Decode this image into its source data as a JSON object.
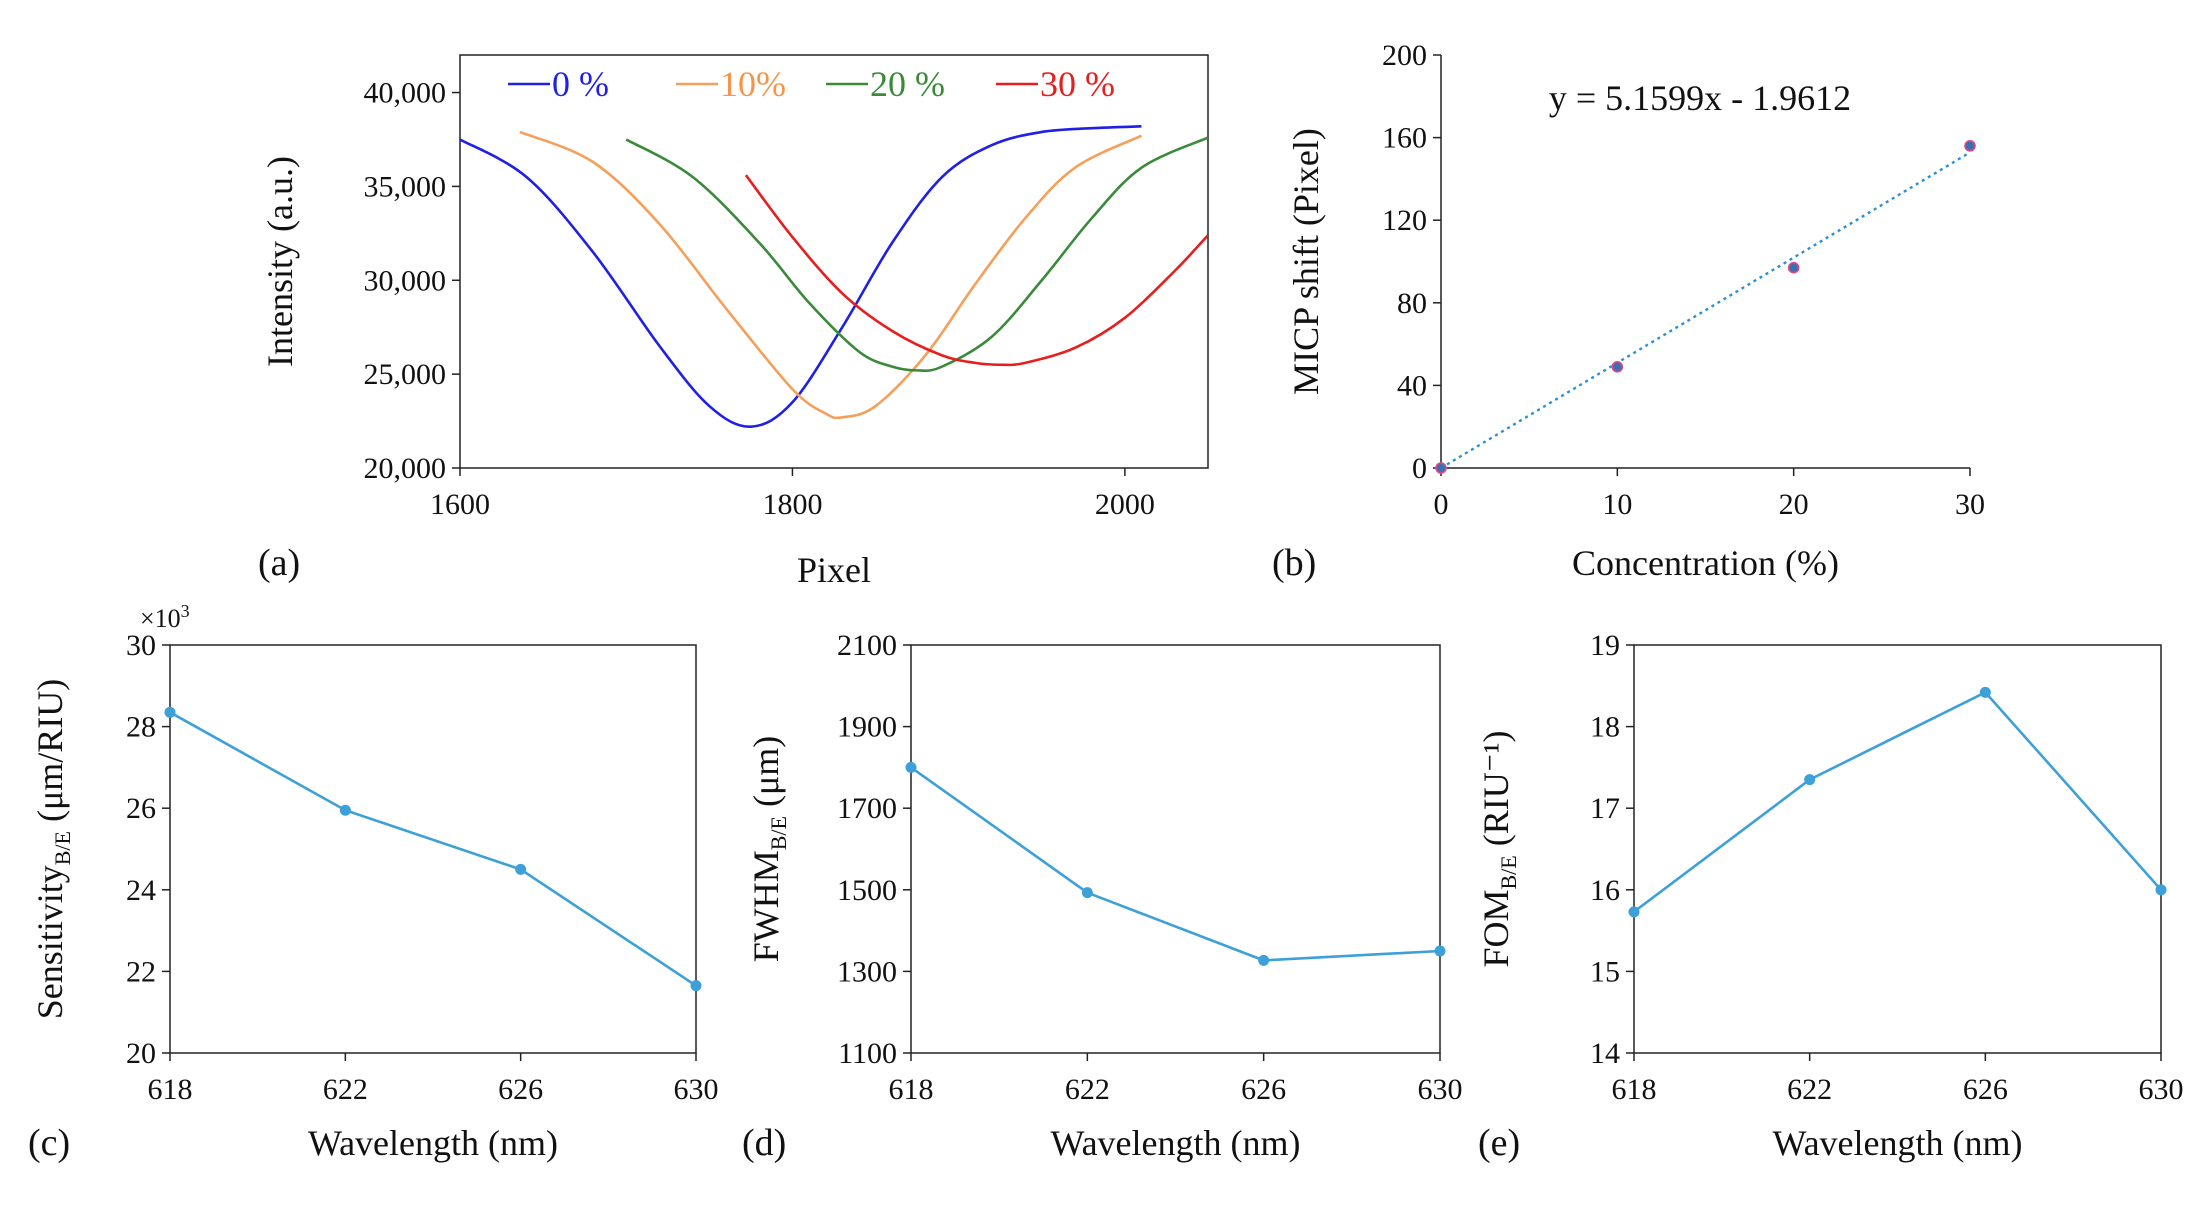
{
  "chart_data": [
    {
      "id": "a",
      "type": "line",
      "panel_label": "(a)",
      "xlabel": "Pixel",
      "ylabel": "Intensity (a.u.)",
      "xlim": [
        1600,
        2050
      ],
      "ylim": [
        20000,
        42000
      ],
      "xticks": [
        "1600",
        "1800",
        "2000"
      ],
      "yticks": [
        "20,000",
        "25,000",
        "30,000",
        "35,000",
        "40,000"
      ],
      "legend_position": "top",
      "series": [
        {
          "name": "0 %",
          "color": "#1f1fe6",
          "label_color": "#1f1fe6",
          "x": [
            1600,
            1640,
            1680,
            1720,
            1750,
            1775,
            1800,
            1830,
            1860,
            1890,
            1920,
            1950,
            1980,
            2010
          ],
          "y": [
            37500,
            35500,
            31500,
            26500,
            23300,
            22200,
            23500,
            27500,
            32000,
            35500,
            37200,
            37900,
            38100,
            38200
          ]
        },
        {
          "name": "10%",
          "color": "#f5a05a",
          "label_color": "#f5954a",
          "x": [
            1636,
            1680,
            1720,
            1760,
            1800,
            1820,
            1830,
            1850,
            1880,
            1910,
            1940,
            1970,
            2010
          ],
          "y": [
            37900,
            36300,
            33000,
            28500,
            24200,
            22900,
            22700,
            23300,
            26000,
            29800,
            33300,
            36000,
            37700
          ]
        },
        {
          "name": "20 %",
          "color": "#3a8a3a",
          "label_color": "#3a8a3a",
          "x": [
            1700,
            1740,
            1780,
            1810,
            1840,
            1860,
            1875,
            1890,
            1920,
            1950,
            1980,
            2010,
            2050
          ],
          "y": [
            37500,
            35500,
            32000,
            28800,
            26200,
            25400,
            25200,
            25400,
            27000,
            30000,
            33300,
            36000,
            37600
          ]
        },
        {
          "name": "30 %",
          "color": "#e61e1e",
          "label_color": "#e61e1e",
          "x": [
            1772,
            1800,
            1830,
            1860,
            1890,
            1910,
            1925,
            1940,
            1970,
            2000,
            2030,
            2050
          ],
          "y": [
            35600,
            32300,
            29300,
            27300,
            26000,
            25600,
            25500,
            25600,
            26400,
            28000,
            30500,
            32400
          ]
        }
      ]
    },
    {
      "id": "b",
      "type": "scatter",
      "panel_label": "(b)",
      "xlabel": "Concentration (%)",
      "ylabel": "MICP shift (Pixel)",
      "xlim": [
        0,
        30
      ],
      "ylim": [
        0,
        200
      ],
      "xticks": [
        "0",
        "10",
        "20",
        "30"
      ],
      "yticks": [
        "0",
        "40",
        "80",
        "120",
        "160",
        "200"
      ],
      "x": [
        0,
        10,
        20,
        30
      ],
      "y": [
        0,
        49,
        97,
        156
      ],
      "trendline": {
        "slope": 5.1599,
        "intercept": -1.9612,
        "label": "y = 5.1599x - 1.9612",
        "color": "#2b8fd6"
      },
      "marker_edge": "#d84a88",
      "marker_fill": "#3d6fb0"
    },
    {
      "id": "c",
      "type": "line",
      "panel_label": "(c)",
      "xlabel": "Wavelength (nm)",
      "ylabel_main": "Sensitivity",
      "ylabel_sub": "B/E",
      "ylabel_tail": " (μm/RIU)",
      "scale_note_base": "×10",
      "scale_note_exp": "3",
      "xlim": [
        618,
        630
      ],
      "ylim": [
        20,
        30
      ],
      "xticks": [
        "618",
        "622",
        "626",
        "630"
      ],
      "yticks": [
        "20",
        "22",
        "24",
        "26",
        "28",
        "30"
      ],
      "x": [
        618,
        622,
        626,
        630
      ],
      "y": [
        28.35,
        25.95,
        24.5,
        21.65
      ],
      "color": "#3da0d8"
    },
    {
      "id": "d",
      "type": "line",
      "panel_label": "(d)",
      "xlabel": "Wavelength (nm)",
      "ylabel_main": "FWHM",
      "ylabel_sub": "B/E",
      "ylabel_tail": " (μm)",
      "xlim": [
        618,
        630
      ],
      "ylim": [
        1100,
        2100
      ],
      "xticks": [
        "618",
        "622",
        "626",
        "630"
      ],
      "yticks": [
        "1100",
        "1300",
        "1500",
        "1700",
        "1900",
        "2100"
      ],
      "x": [
        618,
        622,
        626,
        630
      ],
      "y": [
        1800,
        1493,
        1327,
        1350
      ],
      "color": "#3da0d8"
    },
    {
      "id": "e",
      "type": "line",
      "panel_label": "(e)",
      "xlabel": "Wavelength (nm)",
      "ylabel_main": "FOM",
      "ylabel_sub": "B/E",
      "ylabel_tail": " (RIU⁻¹)",
      "xlim": [
        618,
        630
      ],
      "ylim": [
        14,
        19
      ],
      "xticks": [
        "618",
        "622",
        "626",
        "630"
      ],
      "yticks": [
        "14",
        "15",
        "16",
        "17",
        "18",
        "19"
      ],
      "x": [
        618,
        622,
        626,
        630
      ],
      "y": [
        15.73,
        17.35,
        18.42,
        16.0
      ],
      "color": "#3da0d8"
    }
  ]
}
